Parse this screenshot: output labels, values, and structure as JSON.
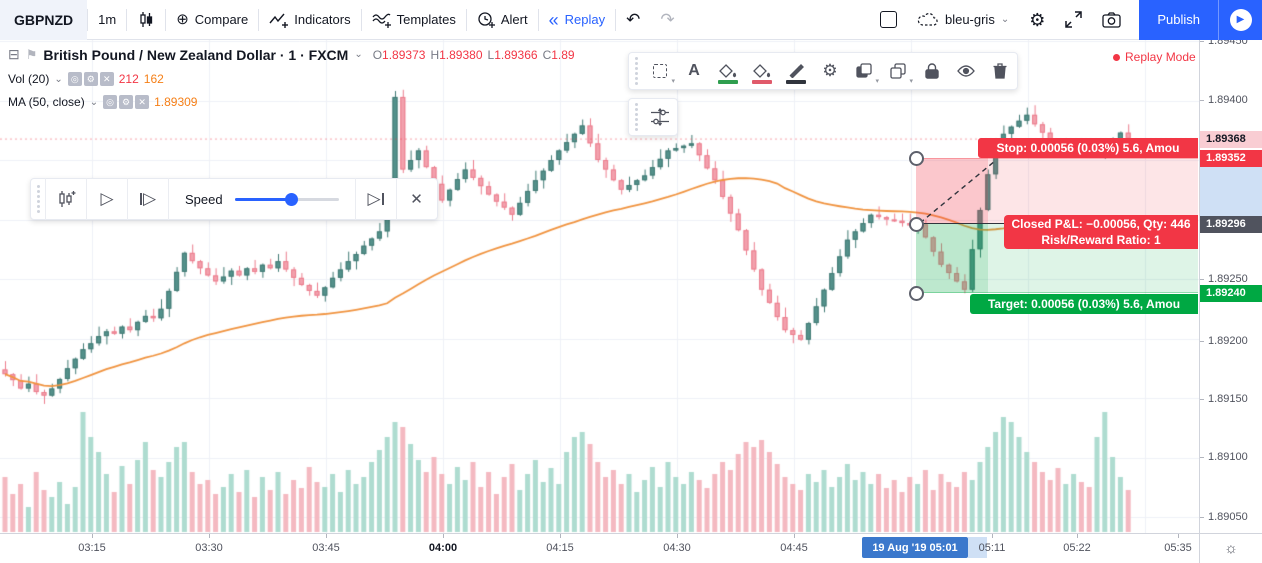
{
  "toolbar": {
    "symbol": "GBPNZD",
    "interval": "1m",
    "compare": "Compare",
    "indicators": "Indicators",
    "templates": "Templates",
    "alert": "Alert",
    "replay": "Replay",
    "undo_icon": "undo-arrow",
    "redo_icon": "redo-arrow",
    "theme_name": "bleu-gris",
    "publish_label": "Publish",
    "accent_color": "#2962ff"
  },
  "legend": {
    "collapse_glyph": "⊟",
    "title": "British Pound / New Zealand Dollar · 1 · FXCM",
    "ohlc": [
      {
        "k": "O",
        "v": "1.89373"
      },
      {
        "k": "H",
        "v": "1.89380"
      },
      {
        "k": "L",
        "v": "1.89366"
      },
      {
        "k": "C",
        "v": "1.89"
      }
    ],
    "vol_label": "Vol (20)",
    "vol_value_1": "212",
    "vol_value_2": "162",
    "ma_label": "MA (50, close)",
    "ma_value": "1.89309"
  },
  "replay_mode_label": "Replay Mode",
  "replay_bar": {
    "speed_label": "Speed"
  },
  "position_tool": {
    "stop_label": "Stop: 0.00056 (0.03%) 5.6, Amou",
    "pnl_line1": "Closed P&L: −0.00056, Qty: 446",
    "pnl_line2": "Risk/Reward Ratio: 1",
    "target_label": "Target: 0.00056 (0.03%) 5.6, Amou",
    "entry_price": "1.89296",
    "stop_price": "1.89352",
    "target_price": "1.89240",
    "last_price": "1.89368",
    "stop_color": "#f23645",
    "target_color": "#00a843",
    "entry_label_bg": "#50535e",
    "last_label_bg": "#f9cdd3"
  },
  "price_axis": {
    "ticks": [
      {
        "label": "1.89450",
        "y": 41
      },
      {
        "label": "1.89400",
        "y": 100
      },
      {
        "label": "1.89250",
        "y": 279
      },
      {
        "label": "1.89200",
        "y": 341
      },
      {
        "label": "1.89150",
        "y": 399
      },
      {
        "label": "1.89100",
        "y": 457
      },
      {
        "label": "1.89050",
        "y": 517
      }
    ],
    "special_labels": [
      {
        "label": "1.89368",
        "y": 139,
        "bg": "#f9cdd3",
        "fg": "#131722",
        "name": "last-price-label"
      },
      {
        "label": "1.89352",
        "y": 158,
        "bg": "#f23645",
        "fg": "#ffffff",
        "name": "stop-price-label"
      },
      {
        "label": "1.89296",
        "y": 224,
        "bg": "#50535e",
        "fg": "#ffffff",
        "name": "entry-price-label"
      },
      {
        "label": "1.89240",
        "y": 293,
        "bg": "#00a843",
        "fg": "#ffffff",
        "name": "target-price-label"
      }
    ]
  },
  "time_axis": {
    "ticks": [
      {
        "label": "03:15",
        "x": 92
      },
      {
        "label": "03:30",
        "x": 209
      },
      {
        "label": "03:45",
        "x": 326
      },
      {
        "label": "04:00",
        "x": 443,
        "bold": true
      },
      {
        "label": "04:15",
        "x": 560
      },
      {
        "label": "04:30",
        "x": 677
      },
      {
        "label": "04:45",
        "x": 794
      },
      {
        "label": "05:11",
        "x": 992
      },
      {
        "label": "05:22",
        "x": 1077
      },
      {
        "label": "05:35",
        "x": 1178
      }
    ],
    "replay_label": "19 Aug '19   05:01",
    "sun_glyph": "☼"
  },
  "chart_data": {
    "type": "candlestick",
    "symbol": "GBPNZD",
    "interval_minutes": 1,
    "time_start": "03:03",
    "time_end": "05:27",
    "ylim": [
      1.89035,
      1.89455
    ],
    "grid": true,
    "price_base": 1.89,
    "closes_e5": [
      170,
      165,
      158,
      162,
      155,
      152,
      158,
      166,
      175,
      183,
      191,
      196,
      202,
      206,
      204,
      210,
      207,
      214,
      219,
      217,
      225,
      240,
      256,
      272,
      265,
      259,
      253,
      248,
      252,
      257,
      253,
      259,
      256,
      262,
      259,
      265,
      258,
      251,
      245,
      240,
      236,
      243,
      251,
      258,
      265,
      271,
      278,
      284,
      290,
      320,
      403,
      342,
      350,
      358,
      344,
      330,
      316,
      325,
      334,
      342,
      335,
      328,
      321,
      315,
      310,
      304,
      314,
      324,
      333,
      341,
      350,
      358,
      365,
      372,
      379,
      364,
      350,
      342,
      333,
      325,
      329,
      333,
      337,
      344,
      351,
      358,
      360,
      362,
      364,
      354,
      343,
      333,
      319,
      305,
      291,
      274,
      258,
      241,
      230,
      218,
      207,
      203,
      199,
      213,
      227,
      241,
      255,
      269,
      283,
      290,
      297,
      304,
      302,
      300,
      299,
      297,
      295,
      296,
      285,
      273,
      262,
      255,
      248,
      241,
      275,
      308,
      338,
      367,
      372,
      378,
      383,
      388,
      380,
      373,
      366,
      359,
      361,
      363,
      359,
      356,
      358,
      360,
      365,
      373,
      368
    ],
    "wick_hi_pattern_e5": [
      7,
      1,
      5,
      6,
      8,
      2,
      4,
      1
    ],
    "wick_lo_pattern_e5": [
      2,
      5,
      1,
      3,
      2,
      7,
      1,
      4
    ],
    "volumes": [
      55,
      38,
      48,
      25,
      60,
      42,
      35,
      50,
      28,
      45,
      120,
      95,
      80,
      58,
      40,
      66,
      48,
      72,
      90,
      62,
      55,
      70,
      85,
      90,
      60,
      48,
      52,
      38,
      45,
      58,
      40,
      62,
      35,
      55,
      42,
      60,
      38,
      52,
      44,
      65,
      50,
      45,
      58,
      40,
      62,
      48,
      55,
      70,
      82,
      95,
      110,
      105,
      88,
      72,
      60,
      75,
      58,
      48,
      65,
      52,
      70,
      45,
      60,
      38,
      55,
      68,
      42,
      58,
      72,
      50,
      64,
      48,
      80,
      95,
      100,
      88,
      70,
      55,
      62,
      48,
      58,
      40,
      52,
      65,
      45,
      70,
      55,
      48,
      60,
      52,
      44,
      58,
      70,
      62,
      78,
      90,
      85,
      92,
      80,
      68,
      55,
      48,
      42,
      58,
      50,
      62,
      45,
      55,
      68,
      52,
      60,
      48,
      58,
      44,
      52,
      40,
      55,
      48,
      62,
      42,
      58,
      50,
      45,
      60,
      52,
      70,
      85,
      100,
      115,
      110,
      95,
      80,
      70,
      60,
      52,
      64,
      48,
      58,
      50,
      45,
      95,
      120,
      75,
      55,
      42
    ],
    "ma_period": 50,
    "colors": {
      "up_body": "#54918b",
      "up_border": "#417a74",
      "down_body": "#f2a1ad",
      "down_border": "#ec7d8d",
      "vol_up": "#aedcd0",
      "vol_down": "#f4b9c1",
      "ma_line": "#f0933f",
      "grid": "#eef1f7",
      "last_price_line": "rgba(242,54,69,0.45)"
    }
  }
}
